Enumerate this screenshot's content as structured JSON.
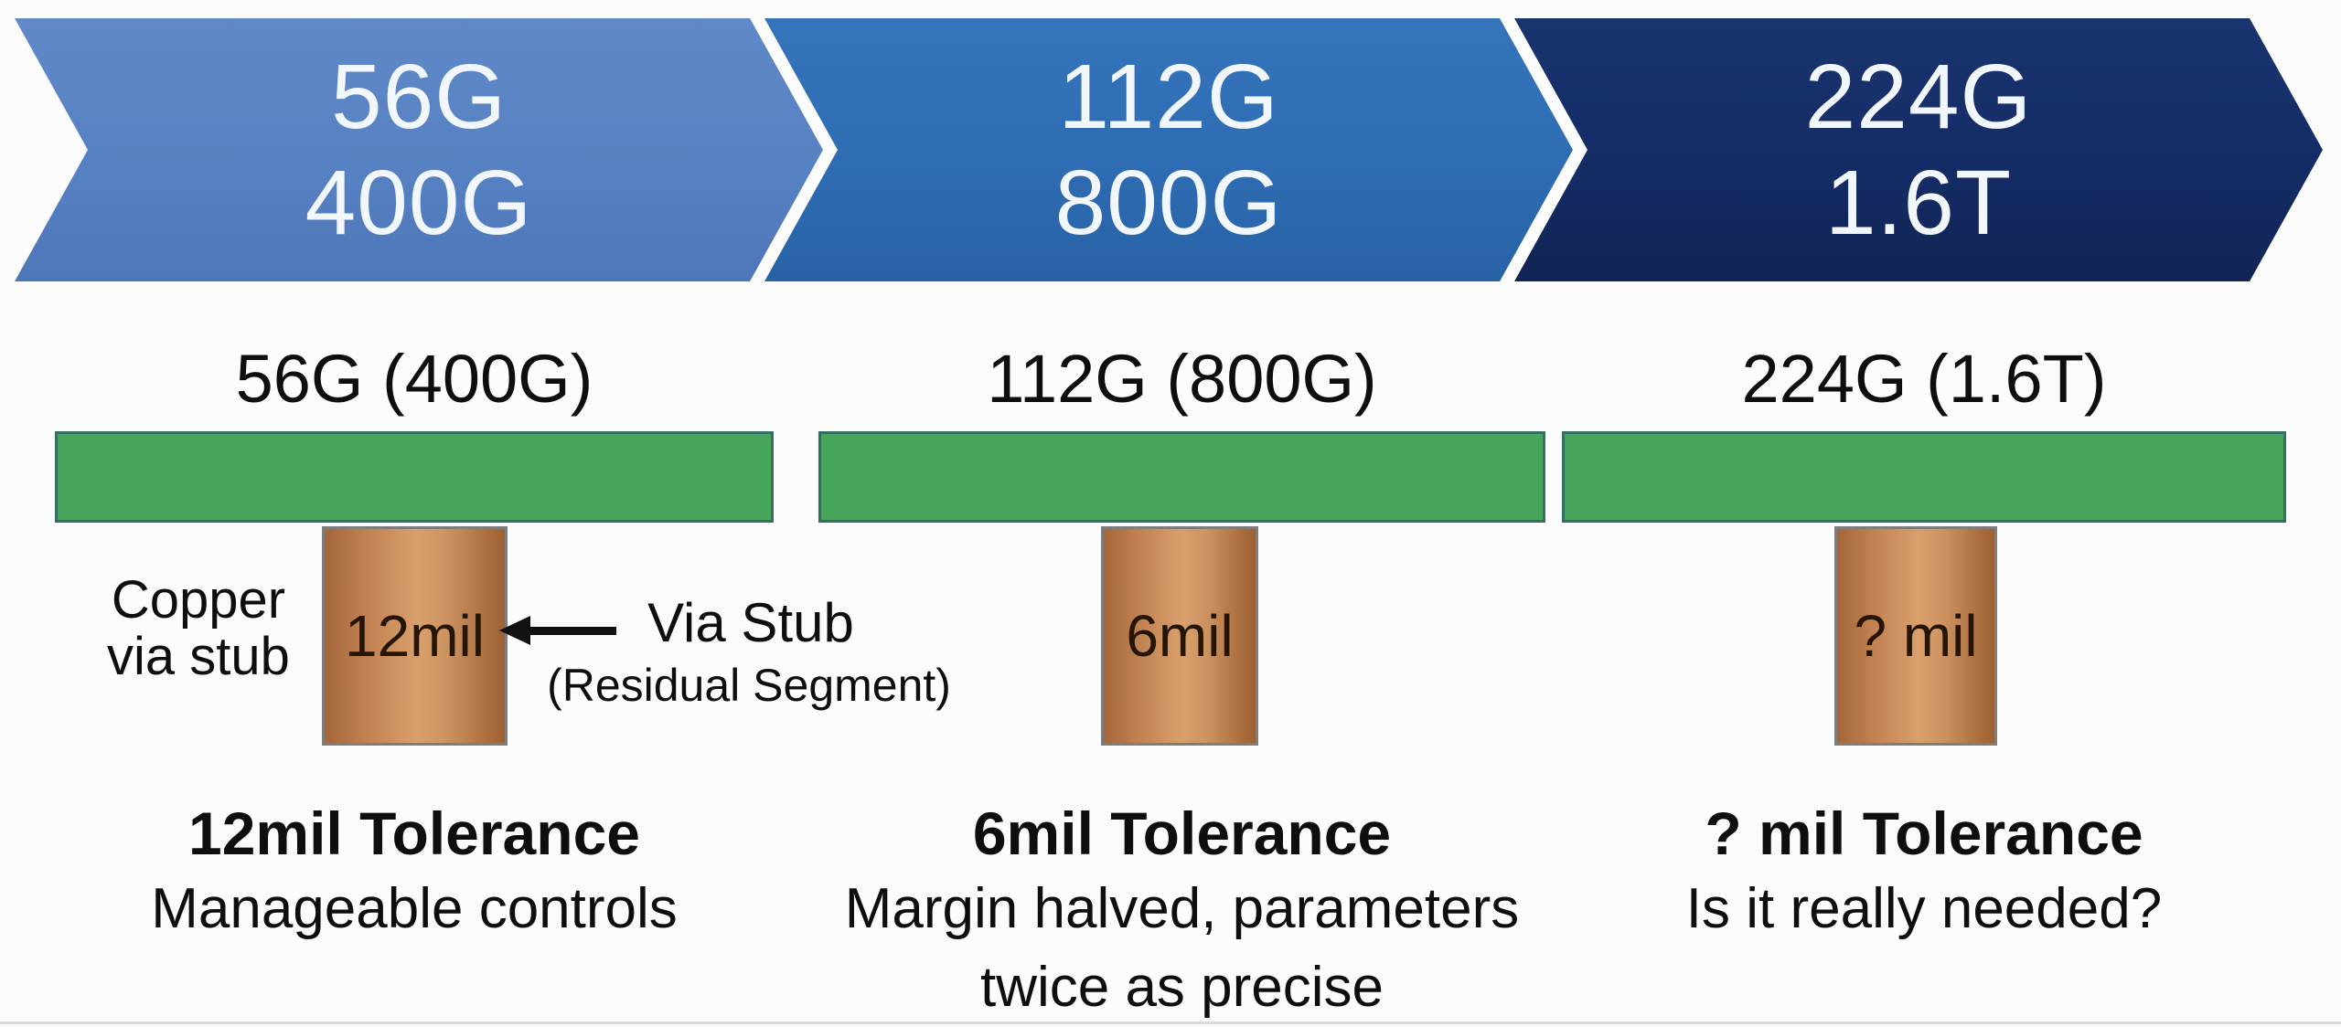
{
  "slide": {
    "background": "#fcfcfc"
  },
  "roadmap_chevrons": [
    {
      "line1": "56G",
      "line2": "400G",
      "fill": "#5681c2"
    },
    {
      "line1": "112G",
      "line2": "800G",
      "fill": "#2e6cb3"
    },
    {
      "line1": "224G",
      "line2": "1.6T",
      "fill": "#142c66"
    }
  ],
  "panels": [
    {
      "title": "56G (400G)",
      "stub_label": "12mil",
      "caption_bold": "12mil Tolerance",
      "caption_line2": "Manageable controls",
      "caption_line3": ""
    },
    {
      "title": "112G (800G)",
      "stub_label": "6mil",
      "caption_bold": "6mil Tolerance",
      "caption_line2": "Margin halved, parameters",
      "caption_line3": "twice as precise"
    },
    {
      "title": "224G (1.6T)",
      "stub_label": "? mil",
      "caption_bold": "? mil Tolerance",
      "caption_line2": "Is it really needed?",
      "caption_line3": ""
    }
  ],
  "annotation": {
    "copper_line1": "Copper",
    "copper_line2": "via stub",
    "arrow_icon": "left-arrow",
    "label": "Via Stub",
    "sublabel": "(Residual Segment)"
  },
  "colors": {
    "trace_green": "#48a65c",
    "trace_border": "#356e62",
    "copper_light": "#d9a06c",
    "copper_dark": "#a4663a",
    "stub_border": "#7d7d7d",
    "chevron_text": "#f2f7fd",
    "text": "#0e0e0e"
  }
}
